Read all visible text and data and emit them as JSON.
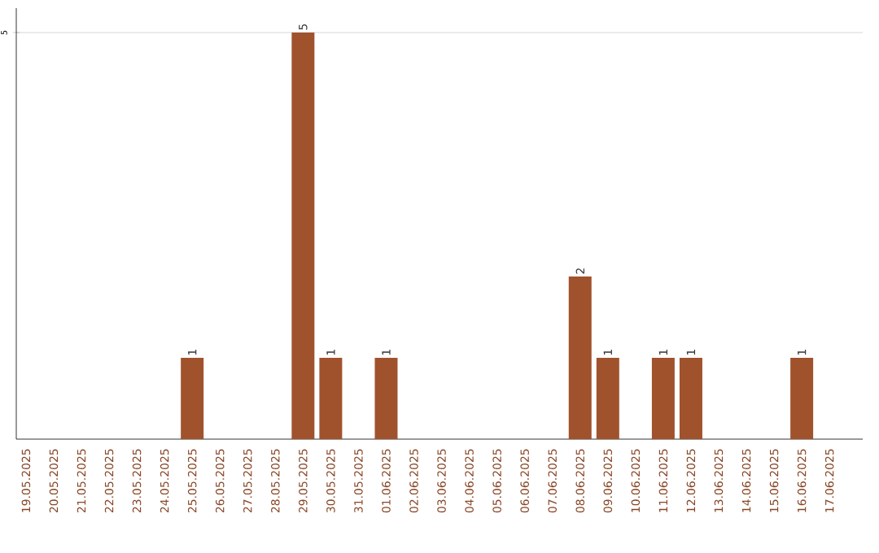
{
  "chart_data": {
    "type": "bar",
    "categories": [
      "19.05.2025",
      "20.05.2025",
      "21.05.2025",
      "22.05.2025",
      "23.05.2025",
      "24.05.2025",
      "25.05.2025",
      "26.05.2025",
      "27.05.2025",
      "28.05.2025",
      "29.05.2025",
      "30.05.2025",
      "31.05.2025",
      "01.06.2025",
      "02.06.2025",
      "03.06.2025",
      "04.06.2025",
      "05.06.2025",
      "06.06.2025",
      "07.06.2025",
      "08.06.2025",
      "09.06.2025",
      "10.06.2025",
      "11.06.2025",
      "12.06.2025",
      "13.06.2025",
      "14.06.2025",
      "15.06.2025",
      "16.06.2025",
      "17.06.2025"
    ],
    "values": [
      0,
      0,
      0,
      0,
      0,
      0,
      1,
      0,
      0,
      0,
      5,
      1,
      0,
      1,
      0,
      0,
      0,
      0,
      0,
      0,
      2,
      1,
      0,
      1,
      1,
      0,
      0,
      0,
      1,
      0
    ],
    "value_labels": [
      null,
      null,
      null,
      null,
      null,
      null,
      "1",
      null,
      null,
      null,
      "5",
      "1",
      null,
      "1",
      null,
      null,
      null,
      null,
      null,
      null,
      "2",
      "1",
      null,
      "1",
      "1",
      null,
      null,
      null,
      "1",
      null
    ],
    "color": "#a0522d",
    "ylim": [
      0,
      5.3
    ],
    "yticks": [
      5
    ],
    "grid": "y"
  }
}
